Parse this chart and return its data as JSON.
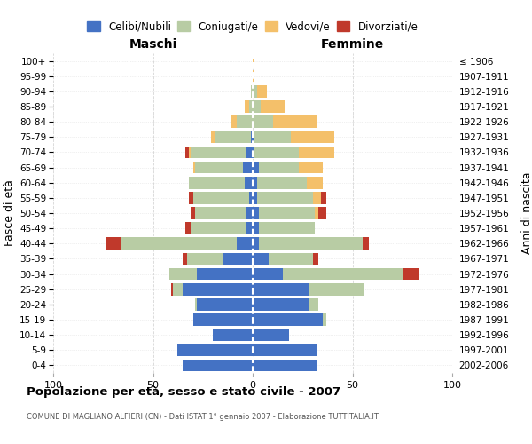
{
  "age_groups": [
    "0-4",
    "5-9",
    "10-14",
    "15-19",
    "20-24",
    "25-29",
    "30-34",
    "35-39",
    "40-44",
    "45-49",
    "50-54",
    "55-59",
    "60-64",
    "65-69",
    "70-74",
    "75-79",
    "80-84",
    "85-89",
    "90-94",
    "95-99",
    "100+"
  ],
  "birth_years": [
    "2002-2006",
    "1997-2001",
    "1992-1996",
    "1987-1991",
    "1982-1986",
    "1977-1981",
    "1972-1976",
    "1967-1971",
    "1962-1966",
    "1957-1961",
    "1952-1956",
    "1947-1951",
    "1942-1946",
    "1937-1941",
    "1932-1936",
    "1927-1931",
    "1922-1926",
    "1917-1921",
    "1912-1916",
    "1907-1911",
    "≤ 1906"
  ],
  "colors": {
    "celibe": "#4472c4",
    "coniugato": "#b8cca4",
    "vedovo": "#f4c06a",
    "divorziato": "#c0392b"
  },
  "maschi": {
    "celibe": [
      35,
      38,
      20,
      30,
      28,
      35,
      28,
      15,
      8,
      3,
      3,
      2,
      4,
      5,
      3,
      1,
      0,
      0,
      0,
      0,
      0
    ],
    "coniugato": [
      0,
      0,
      0,
      0,
      1,
      5,
      14,
      18,
      58,
      28,
      26,
      28,
      28,
      24,
      28,
      18,
      8,
      2,
      1,
      0,
      0
    ],
    "vedovo": [
      0,
      0,
      0,
      0,
      0,
      0,
      0,
      0,
      0,
      0,
      0,
      0,
      0,
      1,
      1,
      2,
      3,
      2,
      0,
      0,
      0
    ],
    "divorziato": [
      0,
      0,
      0,
      0,
      0,
      1,
      0,
      2,
      8,
      3,
      2,
      2,
      0,
      0,
      2,
      0,
      0,
      0,
      0,
      0,
      0
    ]
  },
  "femmine": {
    "nubile": [
      32,
      32,
      18,
      35,
      28,
      28,
      15,
      8,
      3,
      3,
      3,
      2,
      2,
      3,
      1,
      1,
      0,
      0,
      0,
      0,
      0
    ],
    "coniugata": [
      0,
      0,
      0,
      2,
      5,
      28,
      60,
      22,
      52,
      28,
      28,
      28,
      25,
      20,
      22,
      18,
      10,
      4,
      2,
      0,
      0
    ],
    "vedova": [
      0,
      0,
      0,
      0,
      0,
      0,
      0,
      0,
      0,
      0,
      2,
      4,
      8,
      12,
      18,
      22,
      22,
      12,
      5,
      1,
      1
    ],
    "divorziata": [
      0,
      0,
      0,
      0,
      0,
      0,
      8,
      3,
      3,
      0,
      4,
      3,
      0,
      0,
      0,
      0,
      0,
      0,
      0,
      0,
      0
    ]
  },
  "title": "Popolazione per età, sesso e stato civile - 2007",
  "subtitle": "COMUNE DI MAGLIANO ALFIERI (CN) - Dati ISTAT 1° gennaio 2007 - Elaborazione TUTTITALIA.IT",
  "header_left": "Maschi",
  "header_right": "Femmine",
  "ylabel_left": "Fasce di età",
  "ylabel_right": "Anni di nascita",
  "xlim": 100,
  "xticks": [
    -100,
    -50,
    0,
    50,
    100
  ],
  "xtick_labels": [
    "100",
    "50",
    "0",
    "50",
    "100"
  ],
  "legend_labels": [
    "Celibi/Nubili",
    "Coniugati/e",
    "Vedovi/e",
    "Divorziati/e"
  ],
  "background_color": "#ffffff",
  "grid_color": "#cccccc"
}
